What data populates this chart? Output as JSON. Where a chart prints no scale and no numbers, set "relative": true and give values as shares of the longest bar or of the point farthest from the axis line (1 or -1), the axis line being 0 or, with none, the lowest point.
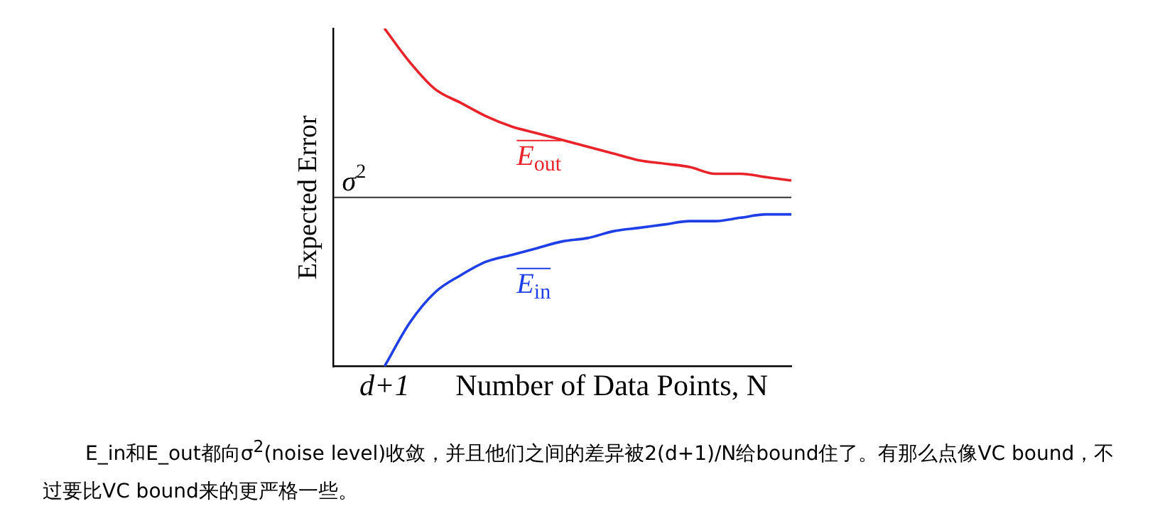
{
  "chart_data": {
    "type": "line",
    "relative": true,
    "xlabel": "Number of Data Points, N",
    "ylabel": "Expected Error",
    "categories": [
      null,
      null,
      null,
      null,
      null,
      null,
      null,
      null,
      null,
      null,
      null,
      null,
      null,
      null,
      null,
      null,
      null,
      null,
      null
    ],
    "series": [
      {
        "name": "E$_{out}$",
        "color": "#e8232a",
        "values": [
          null,
          null,
          1.0,
          0.9,
          0.82,
          0.78,
          0.74,
          0.71,
          0.69,
          0.67,
          0.65,
          0.63,
          0.61,
          0.6,
          0.59,
          0.57,
          0.57,
          0.56,
          0.55
        ]
      },
      {
        "name": "E$_{in}$",
        "color": "#1f3fe6",
        "values": [
          null,
          null,
          0,
          0.13,
          0.22,
          0.27,
          0.31,
          0.33,
          0.35,
          0.37,
          0.38,
          0.4,
          0.41,
          0.42,
          0.43,
          0.43,
          0.44,
          0.45,
          0.45
        ]
      }
    ],
    "ref_lines": [
      {
        "axis": "y",
        "value": 0.5,
        "label": "σ$^{2}$",
        "color": "#333333"
      }
    ],
    "grid": false,
    "legend": "center",
    "marker": "none",
    "line_style": "solid",
    "annotations": [
      "d+1",
      "E_in和E_out都向σ$^{2}$(noise level)收敛，并且他们之间的差异被2(d+1)/N给bound住了。有那么点像VC bound，不过要比VC bound来的更严格一些。"
    ]
  }
}
